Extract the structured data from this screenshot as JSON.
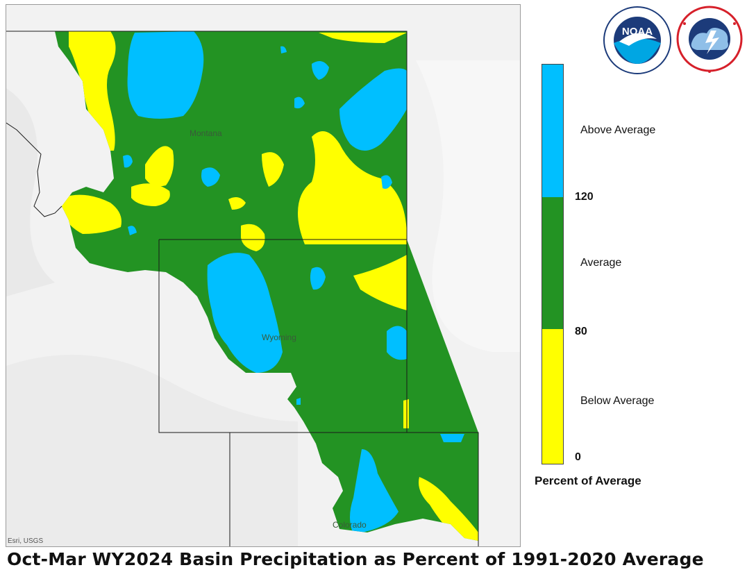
{
  "map": {
    "title": "Oct-Mar WY2024 Basin Precipitation as Percent of 1991-2020 Average",
    "attribution": "Esri, USGS",
    "state_labels": {
      "montana": "Montana",
      "wyoming": "Wyoming",
      "colorado": "Colorado"
    }
  },
  "legend": {
    "title": "Percent of Average",
    "classes": [
      {
        "label": "Above Average",
        "color": "#00bfff"
      },
      {
        "label": "Average",
        "color": "#239323"
      },
      {
        "label": "Below Average",
        "color": "#ffff00"
      }
    ],
    "breaks": [
      "120",
      "80",
      "0"
    ]
  },
  "logos": {
    "noaa": {
      "label": "NOAA",
      "icon": "noaa-logo"
    },
    "nws": {
      "label": "NATIONAL WEATHER SERVICE",
      "icon": "nws-logo"
    }
  },
  "colors": {
    "above": "#00bfff",
    "average": "#239323",
    "below": "#ffff00",
    "border": "#222222"
  }
}
